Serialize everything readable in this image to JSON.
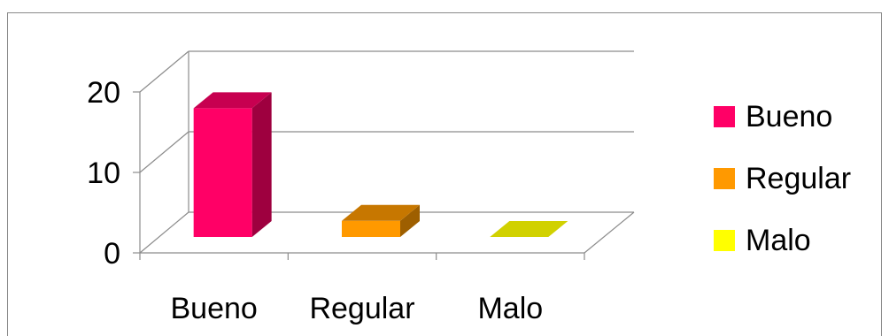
{
  "chart_data": {
    "type": "bar",
    "style": "3d-column",
    "categories": [
      "Bueno",
      "Regular",
      "Malo"
    ],
    "values": [
      16,
      2,
      0
    ],
    "colors": [
      "#ff0066",
      "#ff9900",
      "#ffff00"
    ],
    "ylim": [
      0,
      20
    ],
    "yticks": [
      0,
      10,
      20
    ],
    "grid": true,
    "legend": {
      "position": "right",
      "entries": [
        {
          "label": "Bueno",
          "color": "#ff0066"
        },
        {
          "label": "Regular",
          "color": "#ff9900"
        },
        {
          "label": "Malo",
          "color": "#ffff00"
        }
      ]
    }
  }
}
